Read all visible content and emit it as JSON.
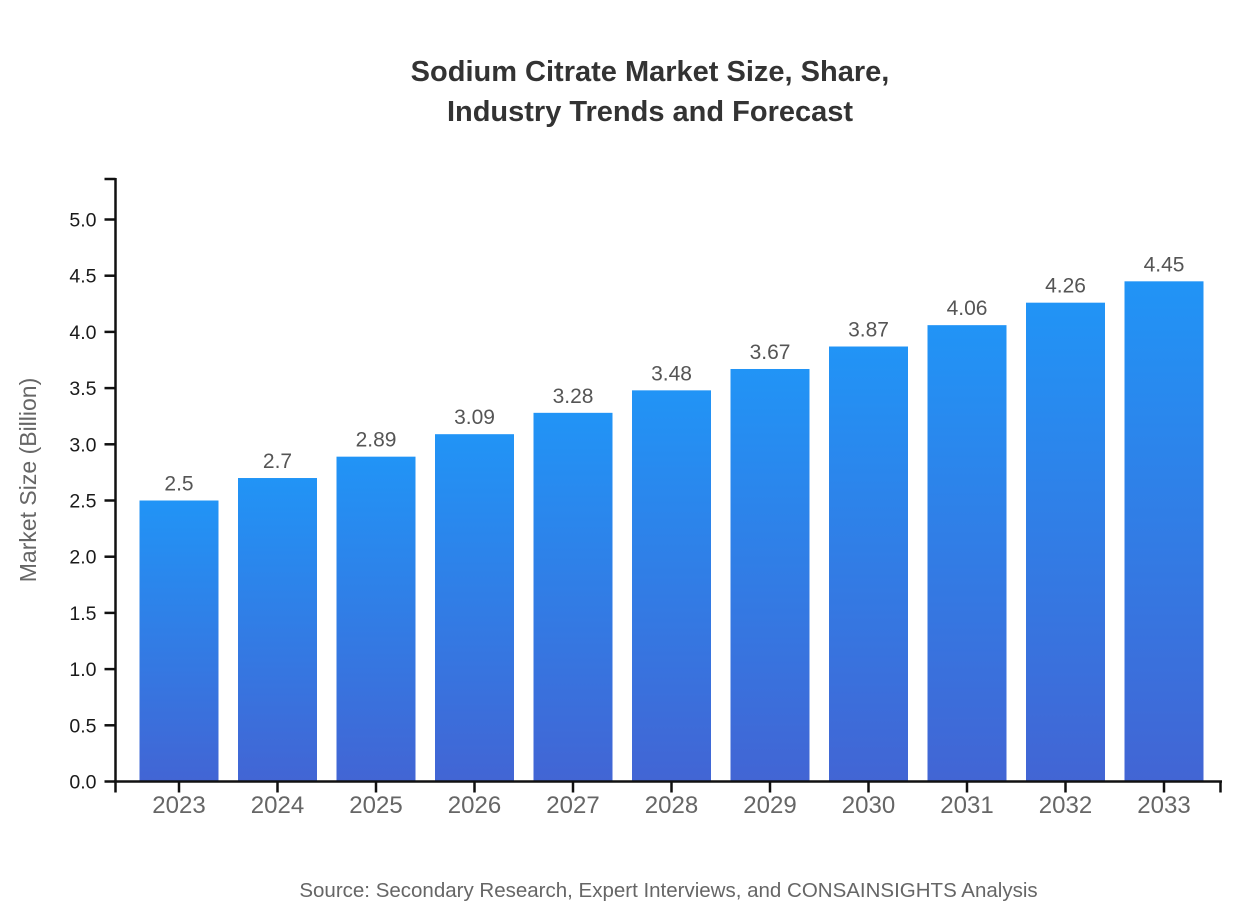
{
  "title": {
    "line1": "Sodium Citrate Market Size, Share,",
    "line2": "Industry Trends and Forecast"
  },
  "source": "Source: Secondary Research, Expert Interviews, and CONSAINSIGHTS Analysis",
  "colors": {
    "bar_top": "#2194F6",
    "bar_bottom": "#4265D4",
    "axis": "#111111",
    "ytick_label": "#1a1a1a",
    "category_label": "#666666",
    "value_label": "#555555",
    "ylabel_text": "#666666"
  },
  "chart_data": {
    "type": "bar",
    "title": "Sodium Citrate Market Size, Share, Industry Trends and Forecast",
    "categories": [
      "2023",
      "2024",
      "2025",
      "2026",
      "2027",
      "2028",
      "2029",
      "2030",
      "2031",
      "2032",
      "2033"
    ],
    "values": [
      2.5,
      2.7,
      2.89,
      3.09,
      3.28,
      3.48,
      3.67,
      3.87,
      4.06,
      4.26,
      4.45
    ],
    "value_labels": [
      "2.5",
      "2.7",
      "2.89",
      "3.09",
      "3.28",
      "3.48",
      "3.67",
      "3.87",
      "4.06",
      "4.26",
      "4.45"
    ],
    "xlabel": "",
    "ylabel": "Market Size (Billion)",
    "ylim": [
      0,
      5.0
    ],
    "yticks": [
      0,
      0.5,
      1.0,
      1.5,
      2.0,
      2.5,
      3.0,
      3.5,
      4.0,
      4.5,
      5.0
    ],
    "ytick_labels": [
      "0.0",
      "0.5",
      "1.0",
      "1.5",
      "2.0",
      "2.5",
      "3.0",
      "3.5",
      "4.0",
      "4.5",
      "5.0"
    ],
    "grid": false,
    "legend": "none",
    "bar_gradient": true
  }
}
